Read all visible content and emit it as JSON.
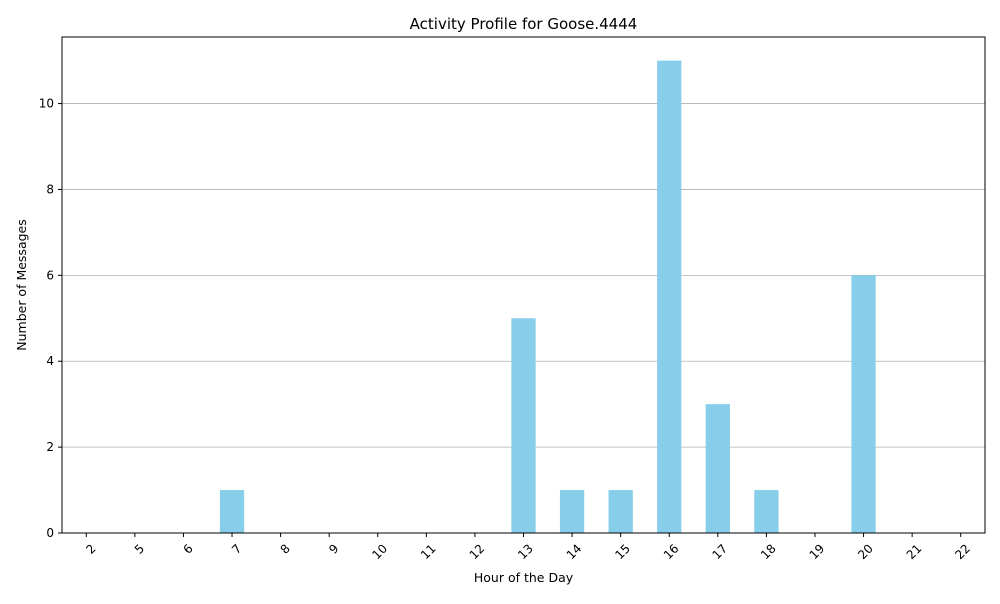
{
  "chart_data": {
    "type": "bar",
    "title": "Activity Profile for Goose.4444",
    "xlabel": "Hour of the Day",
    "ylabel": "Number of Messages",
    "categories": [
      "2",
      "5",
      "6",
      "7",
      "8",
      "9",
      "10",
      "11",
      "12",
      "13",
      "14",
      "15",
      "16",
      "17",
      "18",
      "19",
      "20",
      "21",
      "22"
    ],
    "values": [
      0,
      0,
      0,
      1,
      0,
      0,
      0,
      0,
      0,
      5,
      1,
      1,
      11,
      3,
      1,
      0,
      6,
      0,
      0
    ],
    "ylim": [
      0,
      11.55
    ],
    "yticks": [
      0,
      2,
      4,
      6,
      8,
      10
    ],
    "grid": "horizontal",
    "bar_color": "#87ceeb",
    "grid_color": "#b0b0b0",
    "x_tick_rotation_deg": 45
  }
}
